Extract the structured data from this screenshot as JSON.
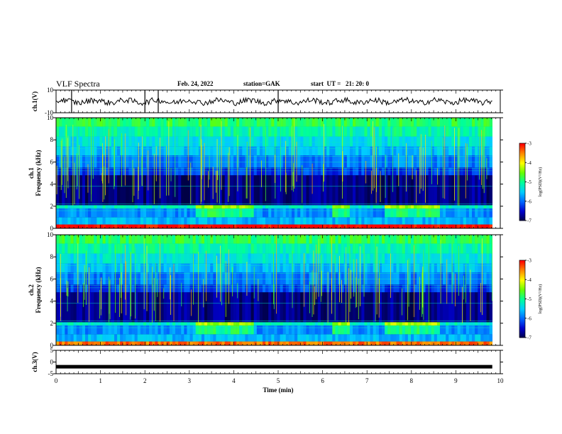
{
  "header": {
    "title": "VLF Spectra",
    "date": "Feb. 24, 2022",
    "station": "station=GAK",
    "start": "start  UT =   21: 20: 0"
  },
  "chart_data": [
    {
      "type": "line",
      "panel": "ch1-waveform",
      "ylabel": "ch.1(V)",
      "ytick_labels": [
        "10",
        "-10"
      ],
      "ylim": [
        -10,
        10
      ],
      "xlim": [
        0,
        10
      ],
      "series": [
        {
          "values": [
            0
          ]
        }
      ]
    },
    {
      "type": "heatmap",
      "panel": "ch1-spectrogram",
      "ylabel": "ch.1\nFrequency (kHz)",
      "ytick_labels": [
        "0",
        "2",
        "4",
        "6",
        "8",
        "10"
      ],
      "ylim": [
        0,
        10
      ],
      "xlim": [
        0,
        10
      ],
      "colorbar": {
        "label": "log(PSD)(V²/Hz)",
        "tick_labels": [
          "-3",
          "-4",
          "-5",
          "-6",
          "-7"
        ],
        "range": [
          -7,
          -3
        ]
      }
    },
    {
      "type": "heatmap",
      "panel": "ch2-spectrogram",
      "ylabel": "ch.2\nFrequency (kHz)",
      "ytick_labels": [
        "0",
        "2",
        "4",
        "6",
        "8",
        "10"
      ],
      "ylim": [
        0,
        10
      ],
      "xlim": [
        0,
        10
      ],
      "colorbar": {
        "label": "log(PSD)(V²/Hz)",
        "tick_labels": [
          "-3",
          "-4",
          "-5",
          "-6",
          "-7"
        ],
        "range": [
          -7,
          -3
        ]
      }
    },
    {
      "type": "line",
      "panel": "ch3-waveform",
      "ylabel": "ch.3(V)",
      "ytick_labels": [
        "5",
        "0",
        "-5"
      ],
      "ylim": [
        -5,
        5
      ],
      "xlim": [
        0,
        10
      ],
      "series": [
        {
          "values": [
            -2
          ]
        }
      ]
    }
  ],
  "xaxis": {
    "label": "Time  (min)",
    "tick_labels": [
      "0",
      "1",
      "2",
      "3",
      "4",
      "5",
      "6",
      "7",
      "8",
      "9",
      "10"
    ]
  },
  "colors": {
    "background": "#000033",
    "colormap": [
      "#000044",
      "#0000cc",
      "#0066ff",
      "#00ccff",
      "#00ff99",
      "#66ff00",
      "#ffff00",
      "#ff8800",
      "#ff0000"
    ]
  }
}
